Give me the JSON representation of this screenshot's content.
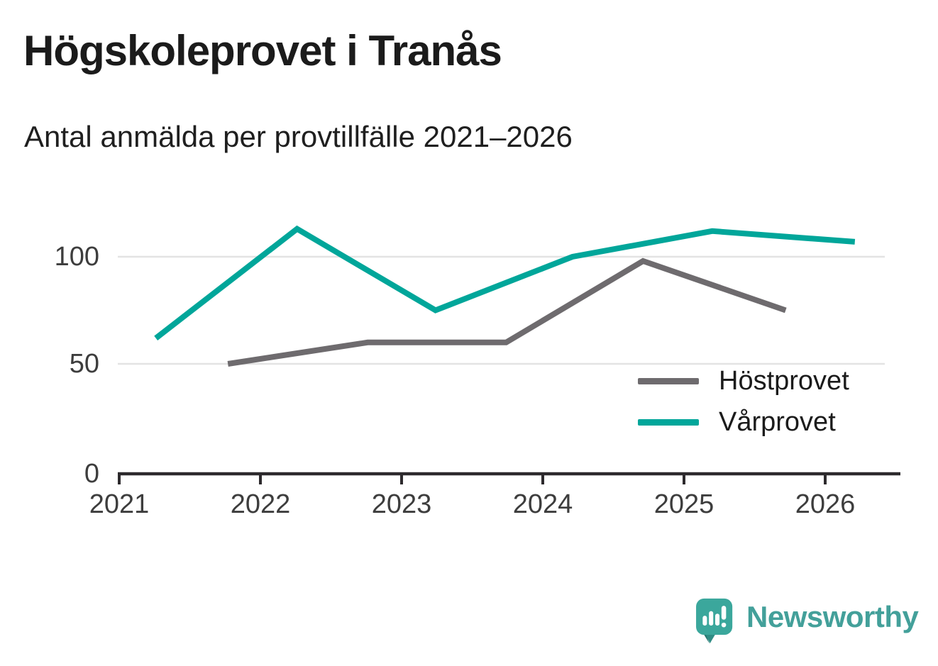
{
  "header": {
    "title": "Högskoleprovet i Tranås",
    "subtitle": "Antal anmälda per provtillfälle 2021–2026"
  },
  "chart_data": {
    "type": "line",
    "title": "Högskoleprovet i Tranås",
    "subtitle": "Antal anmälda per provtillfälle 2021–2026",
    "xlabel": "",
    "ylabel": "",
    "x_ticks": [
      2021,
      2022,
      2023,
      2024,
      2025,
      2026
    ],
    "y_ticks": [
      0,
      50,
      100
    ],
    "xlim": [
      2021,
      2026.55
    ],
    "ylim": [
      0,
      125
    ],
    "grid": "horizontal-only",
    "gridline_color": "#e3e3e3",
    "axis_color": "#2d2a2d",
    "tick_label_color": "#3d3d3d",
    "legend_position": "inside-right-middle",
    "series": [
      {
        "name": "Höstprovet",
        "color": "#6e6b6e",
        "x": [
          2021.77,
          2022.76,
          2023.74,
          2024.71,
          2025.72
        ],
        "values": [
          50,
          60,
          60,
          98,
          75
        ]
      },
      {
        "name": "Vårprovet",
        "color": "#00a69a",
        "x": [
          2021.26,
          2022.26,
          2023.24,
          2024.21,
          2025.2,
          2026.21
        ],
        "values": [
          62,
          113,
          75,
          100,
          112,
          107
        ]
      }
    ]
  },
  "legend": {
    "items": [
      {
        "label": "Höstprovet",
        "color": "#6e6b6e"
      },
      {
        "label": "Vårprovet",
        "color": "#00a69a"
      }
    ]
  },
  "footer": {
    "brand": "Newsworthy",
    "brand_color": "#43a09a",
    "logo_icon": "speech-bubble-bar-chart-exclamation",
    "logo_teal": "#3ba79c",
    "logo_dark_teal": "#25776f"
  }
}
